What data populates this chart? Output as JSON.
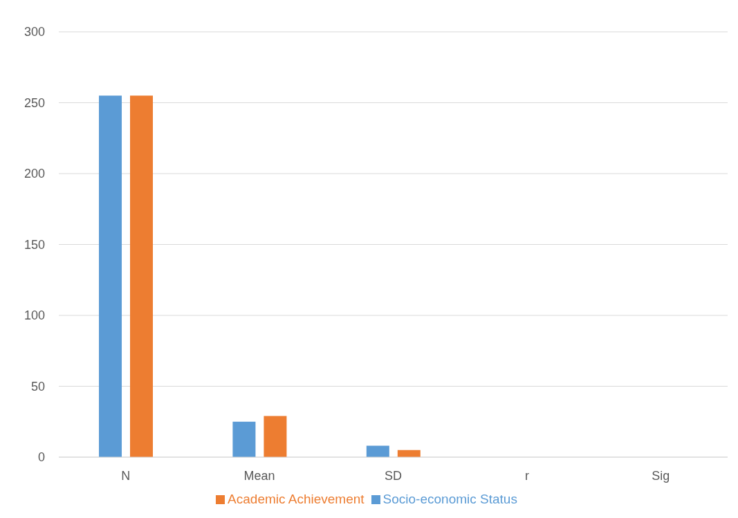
{
  "chart_data": {
    "type": "bar",
    "categories": [
      "N",
      "Mean",
      "SD",
      "r",
      "Sig"
    ],
    "series": [
      {
        "name": "Socio-economic Status",
        "color": "#5b9bd5",
        "values": [
          255,
          25,
          8,
          0,
          0
        ]
      },
      {
        "name": "Academic Achievement",
        "color": "#ed7d31",
        "values": [
          255,
          29,
          5,
          0,
          0
        ]
      }
    ],
    "ylim": [
      0,
      300
    ],
    "yticks": [
      0,
      50,
      100,
      150,
      200,
      250,
      300
    ],
    "grid": "y",
    "legend": "bottom"
  }
}
